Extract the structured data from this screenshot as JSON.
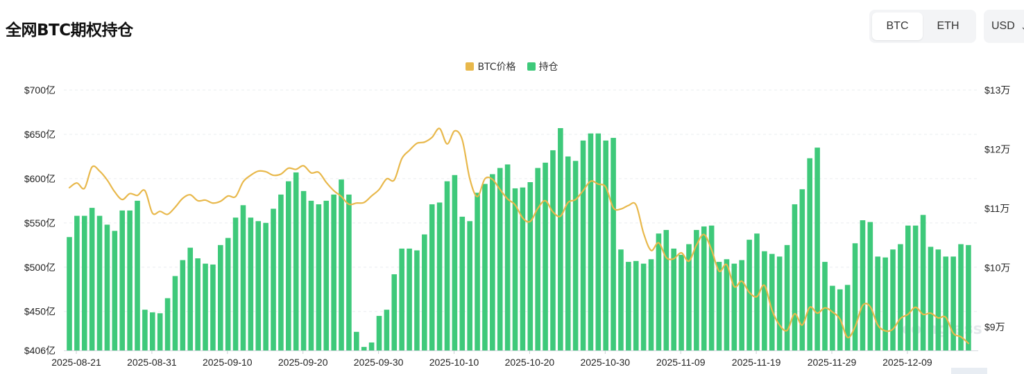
{
  "header": {
    "title": "全网BTC期权持仓",
    "asset_tabs": [
      {
        "label": "BTC",
        "active": true
      },
      {
        "label": "ETH",
        "active": false
      }
    ],
    "currency": {
      "label": "USD",
      "icon": "chevron-down-icon"
    }
  },
  "colors": {
    "price_line": "#e8b84b",
    "oi_bar": "#3ec97a",
    "grid": "#e9ecef"
  },
  "watermark": "coinglass",
  "chart_data": {
    "type": "bar",
    "legend": [
      {
        "name": "BTC价格",
        "color": "#e8b84b"
      },
      {
        "name": "持仓",
        "color": "#3ec97a"
      }
    ],
    "legend_position": "top-center",
    "start_date": "2025-08-21",
    "x_tick_labels": [
      "2025-08-21",
      "2025-08-31",
      "2025-09-10",
      "2025-09-20",
      "2025-09-30",
      "2025-10-10",
      "2025-10-20",
      "2025-10-30",
      "2025-11-09",
      "2025-11-19",
      "2025-11-29",
      "2025-12-09"
    ],
    "y_left": {
      "min": 406,
      "max": 700,
      "ticks": [
        406,
        450,
        500,
        550,
        600,
        650,
        700
      ],
      "tick_labels": [
        "$406亿",
        "$450亿",
        "$500亿",
        "$550亿",
        "$600亿",
        "$650亿",
        "$700亿"
      ]
    },
    "y_right": {
      "min": 86000,
      "max": 130000,
      "ticks": [
        90000,
        100000,
        110000,
        120000,
        130000
      ],
      "tick_labels": [
        "$9万",
        "$10万",
        "$11万",
        "$12万",
        "$13万"
      ]
    },
    "grid": true,
    "series": [
      {
        "name": "持仓",
        "type": "bar",
        "axis": "left",
        "unit": "亿 USD",
        "values": [
          534,
          558,
          558,
          567,
          558,
          548,
          541,
          564,
          564,
          575,
          452,
          449,
          448,
          465,
          490,
          508,
          522,
          510,
          504,
          503,
          525,
          533,
          556,
          570,
          556,
          552,
          550,
          566,
          582,
          597,
          607,
          586,
          575,
          571,
          575,
          582,
          599,
          582,
          427,
          410,
          415,
          445,
          452,
          492,
          521,
          521,
          519,
          537,
          571,
          573,
          597,
          604,
          557,
          552,
          584,
          594,
          605,
          612,
          616,
          589,
          590,
          596,
          612,
          618,
          632,
          657,
          625,
          620,
          643,
          651,
          651,
          643,
          646,
          520,
          506,
          507,
          504,
          509,
          538,
          542,
          521,
          514,
          526,
          542,
          546,
          547,
          506,
          509,
          504,
          508,
          531,
          538,
          518,
          515,
          512,
          525,
          571,
          588,
          623,
          635,
          506,
          479,
          475,
          480,
          527,
          553,
          551,
          512,
          511,
          520,
          526,
          547,
          547,
          559,
          523,
          520,
          512,
          512,
          526,
          525
        ],
        "labels": []
      },
      {
        "name": "BTC价格",
        "type": "line",
        "axis": "right",
        "unit": "USD",
        "values": [
          113500,
          114300,
          113400,
          117000,
          116300,
          114800,
          112800,
          111500,
          112500,
          112200,
          113000,
          109200,
          109500,
          109000,
          110200,
          111700,
          112300,
          111300,
          111400,
          110900,
          111200,
          112100,
          112000,
          114500,
          115600,
          116300,
          116200,
          115600,
          115800,
          116800,
          116600,
          117200,
          116000,
          116100,
          114400,
          113000,
          112000,
          110700,
          110900,
          111000,
          112100,
          113200,
          115000,
          114800,
          118400,
          119800,
          121000,
          121200,
          122000,
          123500,
          120900,
          123100,
          121600,
          115000,
          112000,
          115000,
          114900,
          113200,
          111600,
          110600,
          108400,
          107800,
          110000,
          111300,
          109400,
          108700,
          111000,
          111500,
          113000,
          114600,
          114100,
          113600,
          110100,
          109900,
          110500,
          110600,
          105800,
          102900,
          104200,
          101700,
          101500,
          102500,
          101100,
          103800,
          105600,
          103000,
          99400,
          100500,
          96800,
          97700,
          95800,
          95100,
          97000,
          92800,
          90300,
          89400,
          92200,
          90300,
          93300,
          92300,
          93200,
          92500,
          91300,
          88200,
          90000,
          93600,
          93400,
          90300,
          89300,
          89600,
          91400,
          92100,
          93300,
          92100,
          92300,
          91500,
          91600,
          88900,
          88300,
          87200
        ]
      }
    ]
  }
}
